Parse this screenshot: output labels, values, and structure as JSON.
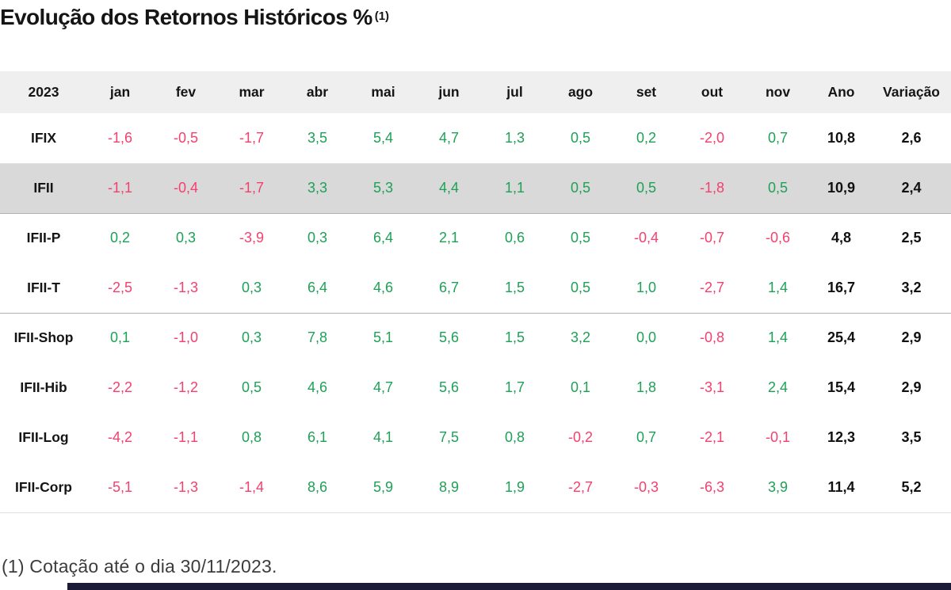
{
  "title": "Evolução dos Retornos Históricos %",
  "title_superscript": "(1)",
  "footnote": "(1) Cotação até o dia 30/11/2023.",
  "colors": {
    "positive": "#1ea157",
    "negative": "#f4406e",
    "header_bg": "#efefef",
    "highlight_row_bg": "#d9d9d9",
    "total_text": "#111111",
    "bottom_bar": "#1b1b38"
  },
  "chart_data": {
    "type": "table",
    "columns": [
      "2023",
      "jan",
      "fev",
      "mar",
      "abr",
      "mai",
      "jun",
      "jul",
      "ago",
      "set",
      "out",
      "nov",
      "Ano",
      "Variação"
    ],
    "rows": [
      {
        "label": "IFIX",
        "monthly": [
          "-1,6",
          "-0,5",
          "-1,7",
          "3,5",
          "5,4",
          "4,7",
          "1,3",
          "0,5",
          "0,2",
          "-2,0",
          "0,7"
        ],
        "ano": "10,8",
        "variacao": "2,6",
        "highlight": false,
        "divider_below": "light"
      },
      {
        "label": "IFII",
        "monthly": [
          "-1,1",
          "-0,4",
          "-1,7",
          "3,3",
          "5,3",
          "4,4",
          "1,1",
          "0,5",
          "0,5",
          "-1,8",
          "0,5"
        ],
        "ano": "10,9",
        "variacao": "2,4",
        "highlight": true,
        "divider_below": "medium"
      },
      {
        "label": "IFII-P",
        "monthly": [
          "0,2",
          "0,3",
          "-3,9",
          "0,3",
          "6,4",
          "2,1",
          "0,6",
          "0,5",
          "-0,4",
          "-0,7",
          "-0,6"
        ],
        "ano": "4,8",
        "variacao": "2,5",
        "highlight": false,
        "divider_below": "none"
      },
      {
        "label": "IFII-T",
        "monthly": [
          "-2,5",
          "-1,3",
          "0,3",
          "6,4",
          "4,6",
          "6,7",
          "1,5",
          "0,5",
          "1,0",
          "-2,7",
          "1,4"
        ],
        "ano": "16,7",
        "variacao": "3,2",
        "highlight": false,
        "divider_below": "medium"
      },
      {
        "label": "IFII-Shop",
        "monthly": [
          "0,1",
          "-1,0",
          "0,3",
          "7,8",
          "5,1",
          "5,6",
          "1,5",
          "3,2",
          "0,0",
          "-0,8",
          "1,4"
        ],
        "ano": "25,4",
        "variacao": "2,9",
        "highlight": false,
        "divider_below": "none"
      },
      {
        "label": "IFII-Hib",
        "monthly": [
          "-2,2",
          "-1,2",
          "0,5",
          "4,6",
          "4,7",
          "5,6",
          "1,7",
          "0,1",
          "1,8",
          "-3,1",
          "2,4"
        ],
        "ano": "15,4",
        "variacao": "2,9",
        "highlight": false,
        "divider_below": "none"
      },
      {
        "label": "IFII-Log",
        "monthly": [
          "-4,2",
          "-1,1",
          "0,8",
          "6,1",
          "4,1",
          "7,5",
          "0,8",
          "-0,2",
          "0,7",
          "-2,1",
          "-0,1"
        ],
        "ano": "12,3",
        "variacao": "3,5",
        "highlight": false,
        "divider_below": "none"
      },
      {
        "label": "IFII-Corp",
        "monthly": [
          "-5,1",
          "-1,3",
          "-1,4",
          "8,6",
          "5,9",
          "8,9",
          "1,9",
          "-2,7",
          "-0,3",
          "-6,3",
          "3,9"
        ],
        "ano": "11,4",
        "variacao": "5,2",
        "highlight": false,
        "divider_below": "light"
      }
    ]
  }
}
